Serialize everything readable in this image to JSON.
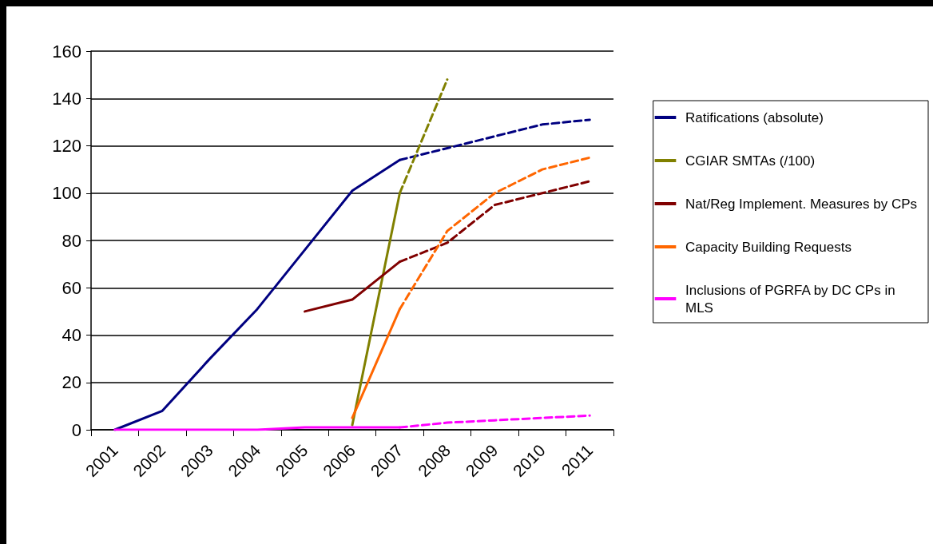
{
  "chart_data": {
    "type": "line",
    "categories": [
      "2001",
      "2002",
      "2003",
      "2004",
      "2005",
      "2006",
      "2007",
      "2008",
      "2009",
      "2010",
      "2011"
    ],
    "ylim": [
      0,
      160
    ],
    "yticks": [
      0,
      20,
      40,
      60,
      80,
      100,
      120,
      140,
      160
    ],
    "grid": "y",
    "legend": "right",
    "marker": "none",
    "series": [
      {
        "name": "Ratifications (absolute)",
        "color": "#000080",
        "line_style": "solid",
        "values": [
          0,
          8,
          30,
          51,
          76,
          101,
          114,
          null,
          null,
          null,
          null
        ]
      },
      {
        "color": "#000080",
        "line_style": "dashed",
        "values": [
          null,
          null,
          null,
          null,
          null,
          null,
          114,
          119,
          124,
          129,
          131
        ]
      },
      {
        "name": "CGIAR SMTAs (/100)",
        "color": "#808000",
        "line_style": "solid",
        "values": [
          null,
          null,
          null,
          null,
          null,
          2,
          100,
          null,
          null,
          null,
          null
        ]
      },
      {
        "color": "#808000",
        "line_style": "dashed",
        "values": [
          null,
          null,
          null,
          null,
          null,
          null,
          100,
          148,
          null,
          null,
          null
        ]
      },
      {
        "name": "Nat/Reg Implement. Measures by CPs",
        "color": "#800000",
        "line_style": "solid",
        "values": [
          null,
          null,
          null,
          null,
          50,
          55,
          71,
          null,
          null,
          null,
          null
        ]
      },
      {
        "color": "#800000",
        "line_style": "dashed",
        "values": [
          null,
          null,
          null,
          null,
          null,
          null,
          71,
          79,
          95,
          100,
          105
        ]
      },
      {
        "name": "Capacity Building Requests",
        "color": "#ff6600",
        "line_style": "solid",
        "values": [
          null,
          null,
          null,
          null,
          null,
          5,
          51,
          null,
          null,
          null,
          null
        ]
      },
      {
        "color": "#ff6600",
        "line_style": "dashed",
        "values": [
          null,
          null,
          null,
          null,
          null,
          null,
          51,
          84,
          100,
          110,
          115
        ]
      },
      {
        "name": "Inclusions of PGRFA by DC CPs in MLS",
        "color": "#ff00ff",
        "line_style": "solid",
        "values": [
          0,
          0,
          0,
          0,
          1,
          1,
          1,
          null,
          null,
          null,
          null
        ]
      },
      {
        "color": "#ff00ff",
        "line_style": "dashed",
        "values": [
          null,
          null,
          null,
          null,
          null,
          null,
          1,
          3,
          4,
          5,
          6
        ]
      }
    ]
  }
}
